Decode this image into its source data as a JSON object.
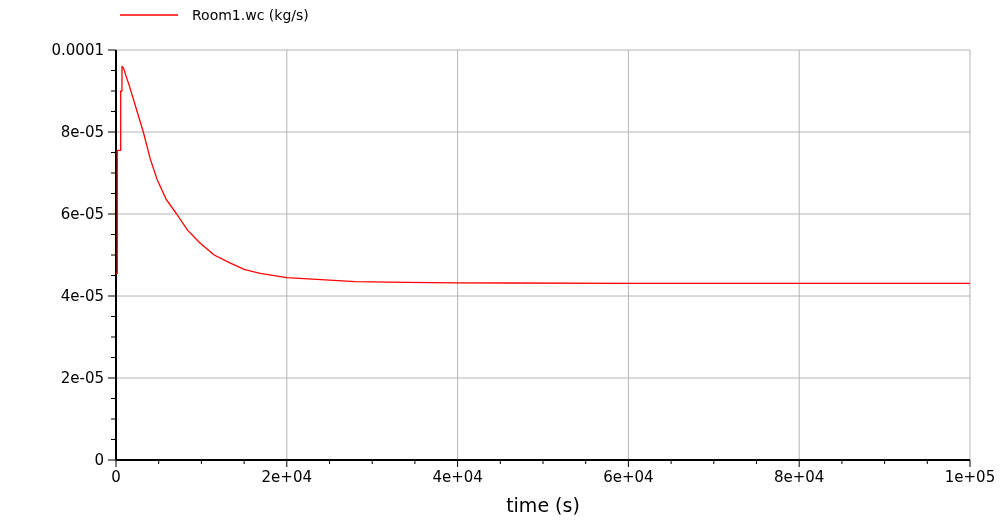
{
  "chart_data": {
    "type": "line",
    "xlabel": "time (s)",
    "legend": "top left",
    "grid": true,
    "xlim": [
      0,
      100000
    ],
    "ylim": [
      0,
      0.0001
    ],
    "xticks": [
      0,
      {
        "value": 5000,
        "label": null
      },
      {
        "value": 10000,
        "label": null
      },
      {
        "value": 15000,
        "label": null
      },
      {
        "value": 20000,
        "label": "2e+04"
      },
      {
        "value": 25000,
        "label": null
      },
      {
        "value": 30000,
        "label": null
      },
      {
        "value": 35000,
        "label": null
      },
      {
        "value": 40000,
        "label": "4e+04"
      },
      {
        "value": 45000,
        "label": null
      },
      {
        "value": 50000,
        "label": null
      },
      {
        "value": 55000,
        "label": null
      },
      {
        "value": 60000,
        "label": "6e+04"
      },
      {
        "value": 65000,
        "label": null
      },
      {
        "value": 70000,
        "label": null
      },
      {
        "value": 75000,
        "label": null
      },
      {
        "value": 80000,
        "label": "8e+04"
      },
      {
        "value": 85000,
        "label": null
      },
      {
        "value": 90000,
        "label": null
      },
      {
        "value": 95000,
        "label": null
      },
      {
        "value": 100000,
        "label": "1e+05"
      }
    ],
    "yticks": [
      0,
      {
        "value": 5e-06,
        "label": null
      },
      {
        "value": 1e-05,
        "label": null
      },
      {
        "value": 1.5e-05,
        "label": null
      },
      {
        "value": 2e-05,
        "label": "2e-05"
      },
      {
        "value": 2.5e-05,
        "label": null
      },
      {
        "value": 3e-05,
        "label": null
      },
      {
        "value": 3.5e-05,
        "label": null
      },
      {
        "value": 4e-05,
        "label": "4e-05"
      },
      {
        "value": 4.5e-05,
        "label": null
      },
      {
        "value": 5e-05,
        "label": null
      },
      {
        "value": 5.5e-05,
        "label": null
      },
      {
        "value": 6e-05,
        "label": "6e-05"
      },
      {
        "value": 6.5e-05,
        "label": null
      },
      {
        "value": 7e-05,
        "label": null
      },
      {
        "value": 7.5e-05,
        "label": null
      },
      {
        "value": 8e-05,
        "label": "8e-05"
      },
      {
        "value": 8.5e-05,
        "label": null
      },
      {
        "value": 9e-05,
        "label": null
      },
      {
        "value": 9.5e-05,
        "label": null
      },
      {
        "value": 0.0001,
        "label": "0.0001"
      }
    ],
    "series": [
      {
        "name": "Room1.wc (kg/s)",
        "color": "#ff0000",
        "x": [
          0,
          150,
          150,
          550,
          550,
          700,
          700,
          900,
          1200,
          1600,
          2400,
          3200,
          4000,
          4800,
          5900,
          7100,
          8400,
          9800,
          11500,
          13400,
          15000,
          16900,
          20000,
          24000,
          28000,
          34000,
          40000,
          60000,
          80000,
          100000
        ],
        "values": [
          4.55e-05,
          4.55e-05,
          7.55e-05,
          7.55e-05,
          9e-05,
          9e-05,
          9.6e-05,
          9.55e-05,
          9.35e-05,
          9.1e-05,
          8.55e-05,
          8e-05,
          7.35e-05,
          6.85e-05,
          6.35e-05,
          6e-05,
          5.6e-05,
          5.3e-05,
          5e-05,
          4.8e-05,
          4.65e-05,
          4.55e-05,
          4.45e-05,
          4.4e-05,
          4.35e-05,
          4.33e-05,
          4.32e-05,
          4.31e-05,
          4.31e-05,
          4.31e-05
        ]
      }
    ]
  }
}
